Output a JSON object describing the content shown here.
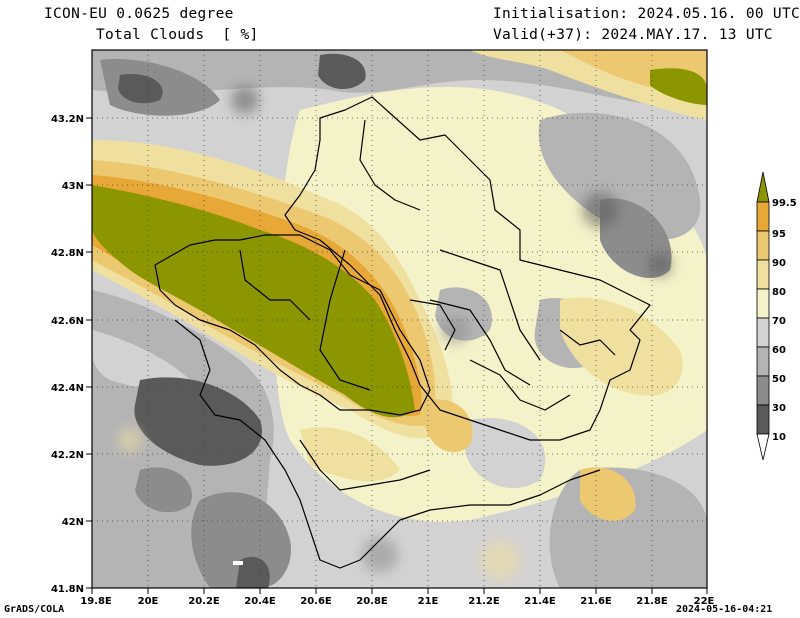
{
  "header": {
    "model": "ICON-EU 0.0625 degree",
    "variable": "Total Clouds  [ %]",
    "init": "Initialisation: 2024.05.16. 00 UTC",
    "valid": "Valid(+37): 2024.MAY.17. 13 UTC"
  },
  "axes": {
    "lat_labels": [
      "43.2N",
      "43N",
      "42.8N",
      "42.6N",
      "42.4N",
      "42.2N",
      "42N",
      "41.8N"
    ],
    "lon_labels": [
      "19.8E",
      "20E",
      "20.2E",
      "20.4E",
      "20.6E",
      "20.8E",
      "21E",
      "21.2E",
      "21.4E",
      "21.6E",
      "21.8E",
      "22E"
    ]
  },
  "colorbar": {
    "labels": [
      "99.5",
      "95",
      "90",
      "80",
      "70",
      "60",
      "50",
      "30",
      "10"
    ],
    "colors": [
      "#ffffff",
      "#5a5a5a",
      "#8c8c8c",
      "#b4b4b4",
      "#d2d2d2",
      "#f4f2c8",
      "#f0e0a0",
      "#ecc870",
      "#e8a838",
      "#8c9600"
    ]
  },
  "footer": {
    "left": "GrADS/COLA",
    "right": "2024-05-16-04:21"
  }
}
